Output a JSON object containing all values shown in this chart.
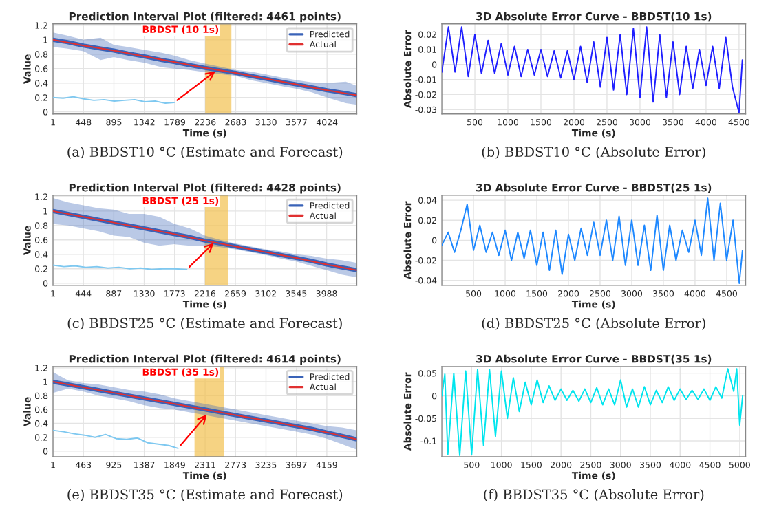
{
  "chart_data": [
    {
      "type": "line",
      "title": "Prediction Interval Plot (filtered: 4461 points)",
      "subtitle": "BBDST (10 1s)",
      "xlabel": "Time (s)",
      "ylabel": "Value",
      "annotations": [
        "(a) BBDST10 °C (Estimate and Forecast)"
      ],
      "xlim": [
        1,
        4461
      ],
      "ylim": [
        -0.03,
        1.22
      ],
      "xticks": [
        1,
        448,
        895,
        1342,
        1789,
        2236,
        2683,
        3130,
        3577,
        4024
      ],
      "yticks": [
        0,
        0.2,
        0.4,
        0.6,
        0.8,
        1,
        1.2
      ],
      "grid": true,
      "legend": "top right",
      "bands": [
        {
          "axis": "x",
          "from": 2236,
          "to": 2620,
          "color": "#f2c14e"
        }
      ],
      "series": [
        {
          "name": "Predicted",
          "color": "#3a63b8",
          "x": [
            1,
            200,
            448,
            700,
            895,
            1100,
            1342,
            1600,
            1789,
            2000,
            2236,
            2500,
            2683,
            2900,
            3130,
            3400,
            3577,
            3800,
            4024,
            4300,
            4461
          ],
          "values": [
            1.0,
            0.97,
            0.92,
            0.88,
            0.85,
            0.81,
            0.77,
            0.72,
            0.69,
            0.65,
            0.61,
            0.57,
            0.54,
            0.5,
            0.46,
            0.41,
            0.38,
            0.34,
            0.3,
            0.26,
            0.23
          ],
          "lower": [
            0.9,
            0.88,
            0.84,
            0.72,
            0.76,
            0.72,
            0.68,
            0.62,
            0.6,
            0.58,
            0.55,
            0.52,
            0.5,
            0.44,
            0.4,
            0.35,
            0.32,
            0.27,
            0.2,
            0.12,
            0.1
          ],
          "upper": [
            1.1,
            1.06,
            1.0,
            1.03,
            0.93,
            0.9,
            0.86,
            0.82,
            0.78,
            0.72,
            0.67,
            0.62,
            0.58,
            0.56,
            0.52,
            0.47,
            0.44,
            0.41,
            0.4,
            0.42,
            0.36
          ]
        },
        {
          "name": "Actual",
          "color": "#e03030",
          "x": [
            1,
            448,
            895,
            1342,
            1789,
            2236,
            2683,
            3130,
            3577,
            4024,
            4461
          ],
          "values": [
            1.0,
            0.92,
            0.85,
            0.77,
            0.69,
            0.61,
            0.54,
            0.46,
            0.38,
            0.3,
            0.23
          ]
        },
        {
          "color": "#7ec8f0",
          "x": [
            1,
            150,
            300,
            450,
            600,
            750,
            900,
            1050,
            1200,
            1350,
            1500,
            1650,
            1780
          ],
          "values": [
            0.2,
            0.19,
            0.21,
            0.18,
            0.16,
            0.17,
            0.15,
            0.16,
            0.17,
            0.14,
            0.15,
            0.12,
            0.13
          ]
        }
      ]
    },
    {
      "type": "line",
      "title": "3D Absolute Error Curve - BBDST(10 1s)",
      "xlabel": "Time (s)",
      "ylabel": "Absolute Error",
      "annotations": [
        "(b) BBDST10 °C (Absolute Error)"
      ],
      "xlim": [
        0,
        4600
      ],
      "ylim": [
        -0.033,
        0.027
      ],
      "xticks": [
        500,
        1000,
        1500,
        2000,
        2500,
        3000,
        3500,
        4000,
        4500
      ],
      "yticks": [
        -0.03,
        -0.02,
        -0.01,
        0,
        0.01,
        0.02
      ],
      "grid": true,
      "series": [
        {
          "color": "#1f1fff",
          "x": [
            0,
            100,
            200,
            300,
            400,
            500,
            600,
            700,
            800,
            900,
            1000,
            1100,
            1200,
            1300,
            1400,
            1500,
            1600,
            1700,
            1800,
            1900,
            2000,
            2100,
            2200,
            2300,
            2400,
            2500,
            2600,
            2700,
            2800,
            2900,
            3000,
            3100,
            3200,
            3300,
            3400,
            3500,
            3600,
            3700,
            3800,
            3900,
            4000,
            4100,
            4200,
            4300,
            4400,
            4500,
            4550
          ],
          "values": [
            -0.005,
            0.025,
            -0.005,
            0.025,
            -0.008,
            0.02,
            -0.006,
            0.016,
            -0.006,
            0.014,
            -0.007,
            0.012,
            -0.008,
            0.01,
            -0.007,
            0.01,
            -0.008,
            0.009,
            -0.009,
            0.009,
            -0.01,
            0.012,
            -0.012,
            0.015,
            -0.015,
            0.018,
            -0.017,
            0.02,
            -0.02,
            0.024,
            -0.022,
            0.025,
            -0.025,
            0.02,
            -0.022,
            0.015,
            -0.02,
            0.012,
            -0.016,
            0.01,
            -0.014,
            0.012,
            -0.016,
            0.018,
            -0.015,
            -0.032,
            0.003
          ]
        }
      ]
    },
    {
      "type": "line",
      "title": "Prediction Interval Plot (filtered: 4428 points)",
      "subtitle": "BBDST (25 1s)",
      "xlabel": "Time (s)",
      "ylabel": "Value",
      "annotations": [
        "(c) BBDST25 °C (Estimate and Forecast)"
      ],
      "xlim": [
        1,
        4428
      ],
      "ylim": [
        -0.03,
        1.22
      ],
      "xticks": [
        1,
        444,
        887,
        1330,
        1773,
        2216,
        2659,
        3102,
        3545,
        3988
      ],
      "yticks": [
        0,
        0.2,
        0.4,
        0.6,
        0.8,
        1,
        1.2
      ],
      "grid": true,
      "legend": "top right",
      "bands": [
        {
          "axis": "x",
          "from": 2216,
          "to": 2550,
          "color": "#f2c14e"
        }
      ],
      "series": [
        {
          "name": "Predicted",
          "color": "#3a63b8",
          "x": [
            1,
            222,
            444,
            665,
            887,
            1108,
            1330,
            1551,
            1773,
            1994,
            2216,
            2437,
            2659,
            2880,
            3102,
            3323,
            3545,
            3766,
            3988,
            4209,
            4428
          ],
          "values": [
            1.0,
            0.96,
            0.92,
            0.88,
            0.84,
            0.8,
            0.76,
            0.72,
            0.68,
            0.64,
            0.59,
            0.55,
            0.51,
            0.47,
            0.43,
            0.39,
            0.35,
            0.31,
            0.26,
            0.22,
            0.18
          ],
          "lower": [
            0.82,
            0.8,
            0.76,
            0.72,
            0.66,
            0.64,
            0.56,
            0.52,
            0.54,
            0.52,
            0.52,
            0.5,
            0.47,
            0.43,
            0.39,
            0.34,
            0.3,
            0.24,
            0.18,
            0.12,
            0.08
          ],
          "upper": [
            1.18,
            1.12,
            1.08,
            1.04,
            1.02,
            0.96,
            0.96,
            0.92,
            0.82,
            0.76,
            0.66,
            0.6,
            0.55,
            0.51,
            0.47,
            0.44,
            0.4,
            0.38,
            0.34,
            0.32,
            0.28
          ]
        },
        {
          "name": "Actual",
          "color": "#e03030",
          "x": [
            1,
            444,
            887,
            1330,
            1773,
            2216,
            2659,
            3102,
            3545,
            3988,
            4428
          ],
          "values": [
            1.0,
            0.92,
            0.84,
            0.76,
            0.68,
            0.59,
            0.51,
            0.43,
            0.35,
            0.26,
            0.18
          ]
        },
        {
          "color": "#7ec8f0",
          "x": [
            1,
            160,
            320,
            480,
            640,
            800,
            960,
            1120,
            1280,
            1440,
            1600,
            1760,
            1950
          ],
          "values": [
            0.25,
            0.23,
            0.24,
            0.22,
            0.23,
            0.21,
            0.22,
            0.2,
            0.21,
            0.19,
            0.2,
            0.2,
            0.19
          ]
        }
      ]
    },
    {
      "type": "line",
      "title": "3D Absolute Error Curve - BBDST(25 1s)",
      "xlabel": "Time (s)",
      "ylabel": "Absolute Error",
      "annotations": [
        "(d) BBDST25 °C (Absolute Error)"
      ],
      "xlim": [
        0,
        4800
      ],
      "ylim": [
        -0.045,
        0.045
      ],
      "xticks": [
        500,
        1000,
        1500,
        2000,
        2500,
        3000,
        3500,
        4000,
        4500
      ],
      "yticks": [
        -0.04,
        -0.02,
        0,
        0.02,
        0.04
      ],
      "grid": true,
      "series": [
        {
          "color": "#1e88ff",
          "x": [
            0,
            100,
            200,
            300,
            400,
            500,
            600,
            700,
            800,
            900,
            1000,
            1100,
            1200,
            1300,
            1400,
            1500,
            1600,
            1700,
            1800,
            1900,
            2000,
            2100,
            2200,
            2300,
            2400,
            2500,
            2600,
            2700,
            2800,
            2900,
            3000,
            3100,
            3200,
            3300,
            3400,
            3500,
            3600,
            3700,
            3800,
            3900,
            4000,
            4100,
            4200,
            4300,
            4400,
            4500,
            4600,
            4700,
            4750
          ],
          "values": [
            -0.005,
            0.008,
            -0.012,
            0.01,
            0.036,
            -0.01,
            0.015,
            -0.012,
            0.008,
            -0.015,
            0.01,
            -0.02,
            0.008,
            -0.018,
            0.01,
            -0.025,
            0.008,
            -0.03,
            0.01,
            -0.034,
            0.006,
            -0.02,
            0.012,
            -0.015,
            0.018,
            -0.015,
            0.02,
            -0.02,
            0.024,
            -0.025,
            0.02,
            -0.025,
            0.015,
            -0.03,
            0.025,
            -0.03,
            0.015,
            -0.02,
            0.01,
            -0.012,
            0.02,
            -0.015,
            0.042,
            -0.02,
            0.037,
            -0.02,
            0.02,
            -0.043,
            -0.01
          ]
        }
      ]
    },
    {
      "type": "line",
      "title": "Prediction Interval Plot (filtered: 4614 points)",
      "subtitle": "BBDST (35 1s)",
      "xlabel": "Time (s)",
      "ylabel": "Value",
      "annotations": [
        "(e) BBDST35 °C (Estimate and Forecast)"
      ],
      "xlim": [
        1,
        4614
      ],
      "ylim": [
        -0.08,
        1.22
      ],
      "xticks": [
        1,
        463,
        925,
        1387,
        1849,
        2311,
        2773,
        3235,
        3697,
        4159
      ],
      "yticks": [
        0,
        0.2,
        0.4,
        0.6,
        0.8,
        1,
        1.2
      ],
      "grid": true,
      "legend": "top right",
      "bands": [
        {
          "axis": "x",
          "from": 2150,
          "to": 2600,
          "color": "#f2c14e"
        }
      ],
      "series": [
        {
          "name": "Predicted",
          "color": "#3a63b8",
          "x": [
            1,
            231,
            463,
            694,
            925,
            1156,
            1387,
            1618,
            1849,
            2080,
            2311,
            2542,
            2773,
            3004,
            3235,
            3466,
            3697,
            3928,
            4159,
            4390,
            4614
          ],
          "values": [
            1.0,
            0.96,
            0.92,
            0.88,
            0.84,
            0.8,
            0.76,
            0.72,
            0.68,
            0.64,
            0.6,
            0.56,
            0.52,
            0.48,
            0.44,
            0.4,
            0.36,
            0.32,
            0.27,
            0.22,
            0.17
          ],
          "lower": [
            0.84,
            0.9,
            0.86,
            0.8,
            0.76,
            0.72,
            0.66,
            0.62,
            0.6,
            0.56,
            0.52,
            0.48,
            0.44,
            0.4,
            0.36,
            0.32,
            0.28,
            0.24,
            0.18,
            0.1,
            0.02
          ],
          "upper": [
            1.14,
            1.02,
            0.98,
            0.96,
            0.92,
            0.88,
            0.86,
            0.82,
            0.76,
            0.72,
            0.68,
            0.64,
            0.6,
            0.56,
            0.52,
            0.48,
            0.44,
            0.4,
            0.36,
            0.34,
            0.3
          ]
        },
        {
          "name": "Actual",
          "color": "#e03030",
          "x": [
            1,
            463,
            925,
            1387,
            1849,
            2311,
            2773,
            3235,
            3697,
            4159,
            4614
          ],
          "values": [
            1.0,
            0.92,
            0.84,
            0.76,
            0.68,
            0.6,
            0.52,
            0.44,
            0.36,
            0.27,
            0.17
          ]
        },
        {
          "color": "#7ec8f0",
          "x": [
            1,
            160,
            320,
            480,
            640,
            800,
            960,
            1120,
            1280,
            1440,
            1600,
            1760,
            1900
          ],
          "values": [
            0.3,
            0.28,
            0.25,
            0.23,
            0.2,
            0.24,
            0.18,
            0.17,
            0.19,
            0.12,
            0.1,
            0.08,
            0.04
          ]
        }
      ]
    },
    {
      "type": "line",
      "title": "3D Absolute Error Curve - BBDST(35 1s)",
      "xlabel": "Time (s)",
      "ylabel": "Absolute Error",
      "annotations": [
        "(f) BBDST35 °C (Absolute Error)"
      ],
      "xlim": [
        0,
        5100
      ],
      "ylim": [
        -0.135,
        0.065
      ],
      "xticks": [
        500,
        1000,
        1500,
        2000,
        2500,
        3000,
        3500,
        4000,
        4500,
        5000
      ],
      "yticks": [
        -0.1,
        -0.05,
        0,
        0.05
      ],
      "grid": true,
      "series": [
        {
          "color": "#00e5ee",
          "x": [
            0,
            50,
            100,
            200,
            300,
            400,
            500,
            600,
            700,
            800,
            900,
            1000,
            1100,
            1200,
            1300,
            1400,
            1500,
            1600,
            1700,
            1800,
            1900,
            2000,
            2100,
            2200,
            2300,
            2400,
            2500,
            2600,
            2700,
            2800,
            2900,
            3000,
            3100,
            3200,
            3300,
            3400,
            3500,
            3600,
            3700,
            3800,
            3900,
            4000,
            4100,
            4200,
            4300,
            4400,
            4500,
            4600,
            4700,
            4800,
            4900,
            4950,
            5000,
            5050
          ],
          "values": [
            0.0,
            0.048,
            -0.13,
            0.05,
            -0.132,
            0.055,
            -0.13,
            0.058,
            -0.11,
            0.058,
            -0.09,
            0.055,
            -0.05,
            0.04,
            -0.035,
            0.03,
            -0.02,
            0.035,
            -0.015,
            0.022,
            -0.01,
            0.015,
            -0.01,
            0.012,
            -0.012,
            0.015,
            -0.015,
            0.018,
            -0.02,
            0.015,
            -0.02,
            0.035,
            -0.025,
            0.015,
            -0.025,
            0.02,
            -0.02,
            0.012,
            -0.015,
            0.02,
            -0.01,
            0.015,
            -0.008,
            0.012,
            -0.008,
            0.015,
            -0.01,
            0.02,
            -0.005,
            0.06,
            0.01,
            0.06,
            -0.065,
            0.0
          ]
        }
      ]
    }
  ]
}
